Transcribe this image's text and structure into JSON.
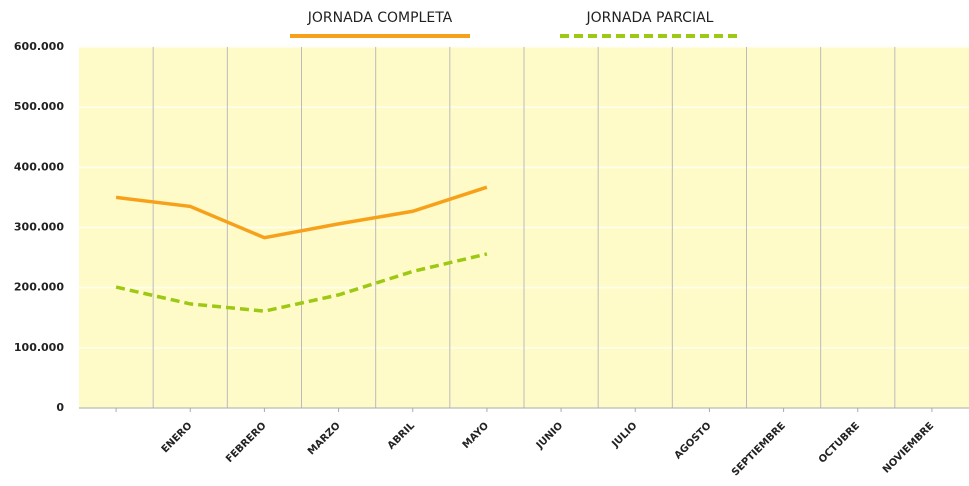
{
  "chart_data": {
    "type": "line",
    "categories": [
      null,
      "ENERO",
      "FEBRERO",
      "MARZO",
      "ABRIL",
      "MAYO",
      "JUNIO",
      "JULIO",
      "AGOSTO",
      "SEPTIEMBRE",
      "OCTUBRE",
      "NOVIEMBRE"
    ],
    "series": [
      {
        "name": "JORNADA COMPLETA",
        "color": "#f7a11a",
        "dash": false,
        "values": [
          350000,
          335000,
          283000,
          306000,
          327000,
          367000,
          null,
          null,
          null,
          null,
          null,
          null
        ]
      },
      {
        "name": "JORNADA PARCIAL",
        "color": "#9dc813",
        "dash": true,
        "values": [
          201000,
          173000,
          161000,
          188000,
          227000,
          256000,
          null,
          null,
          null,
          null,
          null,
          null
        ]
      }
    ],
    "ylim": [
      0,
      600000
    ],
    "yticks": [
      0,
      {
        "value": 100000,
        "label": "100.000"
      },
      {
        "value": 200000,
        "label": "200.000"
      },
      {
        "value": 300000,
        "label": "300.000"
      },
      {
        "value": 400000,
        "label": "400.000"
      },
      {
        "value": 500000,
        "label": "500.000"
      },
      {
        "value": 600000,
        "label": "600.000"
      }
    ],
    "grid": true,
    "legend": "top"
  }
}
